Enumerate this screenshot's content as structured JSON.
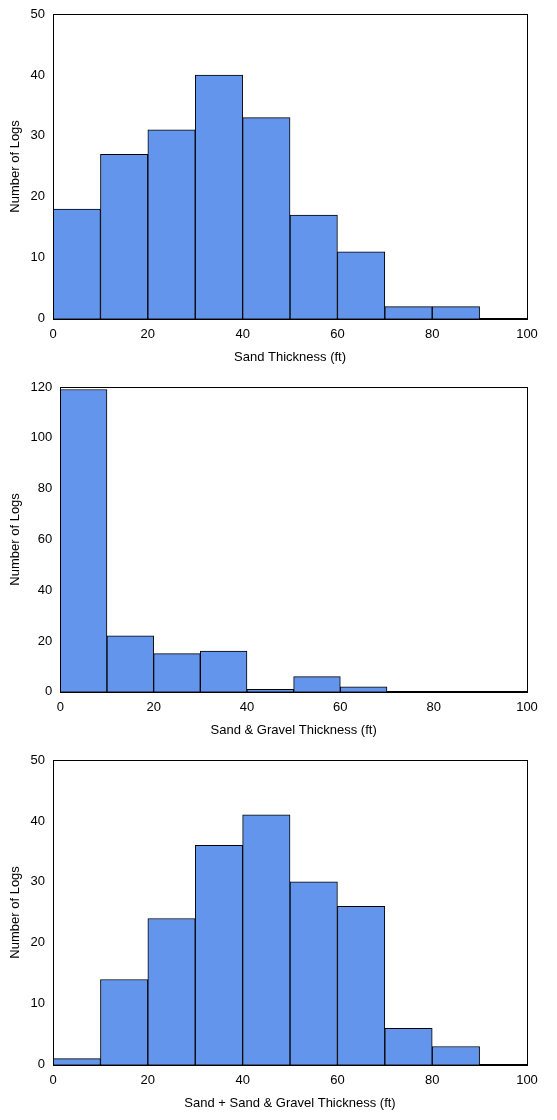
{
  "chart_data": [
    {
      "type": "histogram",
      "x_label": "Sand Thickness (ft)",
      "y_label": "Number of Logs",
      "bins": [
        0,
        10,
        20,
        30,
        40,
        50,
        60,
        70,
        80,
        90
      ],
      "values": [
        18,
        27,
        31,
        40,
        33,
        17,
        11,
        2,
        2
      ],
      "color": "#6495ed",
      "xlim": [
        0,
        100
      ],
      "xticks": [
        0,
        20,
        40,
        60,
        80,
        100
      ],
      "ylim": [
        0,
        50
      ],
      "yticks": [
        0,
        10,
        20,
        30,
        40,
        50
      ],
      "grid": false
    },
    {
      "type": "histogram",
      "x_label": "Sand & Gravel Thickness (ft)",
      "y_label": "Number of Logs",
      "bins": [
        0,
        10,
        20,
        30,
        40,
        50,
        60,
        70
      ],
      "values": [
        119,
        22,
        15,
        16,
        1,
        6,
        2
      ],
      "color": "#6495ed",
      "xlim": [
        0,
        100
      ],
      "xticks": [
        0,
        20,
        40,
        60,
        80,
        100
      ],
      "ylim": [
        0,
        120
      ],
      "yticks": [
        0,
        20,
        40,
        60,
        80,
        100,
        120
      ],
      "grid": false
    },
    {
      "type": "histogram",
      "x_label": "Sand + Sand & Gravel Thickness (ft)",
      "y_label": "Number of Logs",
      "bins": [
        0,
        10,
        20,
        30,
        40,
        50,
        60,
        70,
        80,
        90
      ],
      "values": [
        1,
        14,
        24,
        36,
        41,
        30,
        26,
        6,
        3
      ],
      "color": "#6495ed",
      "xlim": [
        0,
        100
      ],
      "xticks": [
        0,
        20,
        40,
        60,
        80,
        100
      ],
      "ylim": [
        0,
        50
      ],
      "yticks": [
        0,
        10,
        20,
        30,
        40,
        50
      ],
      "grid": false
    }
  ]
}
